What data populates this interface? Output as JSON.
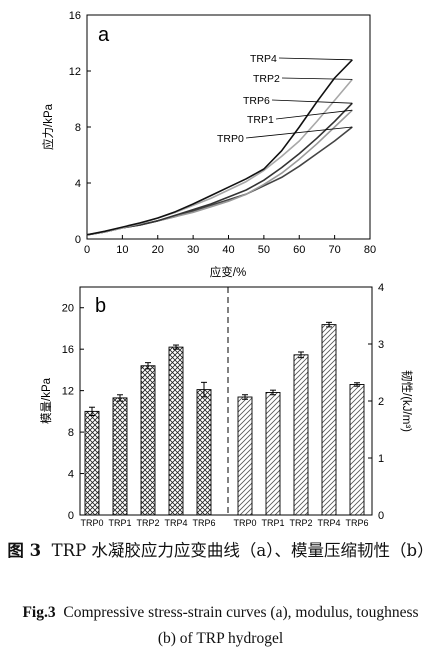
{
  "chart_data": [
    {
      "type": "line",
      "panel_label": "a",
      "xlabel": "应变/%",
      "ylabel": "应力/kPa",
      "xlim": [
        0,
        80
      ],
      "ylim": [
        0,
        16
      ],
      "xticks": [
        "0",
        "10",
        "20",
        "30",
        "40",
        "50",
        "60",
        "70",
        "80"
      ],
      "yticks": [
        "0",
        "4",
        "8",
        "12",
        "16"
      ],
      "legend_placement": "inline-right",
      "series": [
        {
          "name": "TRP0",
          "color": "#444444",
          "x": [
            0,
            5,
            10,
            15,
            20,
            25,
            30,
            35,
            40,
            45,
            50,
            55,
            60,
            65,
            70,
            75
          ],
          "y": [
            0.3,
            0.5,
            0.8,
            1.0,
            1.3,
            1.6,
            2.0,
            2.4,
            2.8,
            3.2,
            3.8,
            4.4,
            5.2,
            6.1,
            7.0,
            8.0
          ]
        },
        {
          "name": "TRP1",
          "color": "#9a9a9a",
          "x": [
            0,
            5,
            10,
            15,
            20,
            25,
            30,
            35,
            40,
            45,
            50,
            55,
            60,
            65,
            70,
            75
          ],
          "y": [
            0.3,
            0.5,
            0.8,
            1.0,
            1.3,
            1.6,
            1.9,
            2.3,
            2.7,
            3.2,
            3.9,
            4.7,
            5.7,
            6.8,
            8.0,
            9.2
          ]
        },
        {
          "name": "TRP6",
          "color": "#333333",
          "x": [
            0,
            5,
            10,
            15,
            20,
            25,
            30,
            35,
            40,
            45,
            50,
            55,
            60,
            65,
            70,
            75
          ],
          "y": [
            0.3,
            0.5,
            0.8,
            1.0,
            1.3,
            1.7,
            2.1,
            2.5,
            3.0,
            3.5,
            4.2,
            5.1,
            6.1,
            7.2,
            8.4,
            9.7
          ]
        },
        {
          "name": "TRP2",
          "color": "#a8a8a8",
          "x": [
            0,
            5,
            10,
            15,
            20,
            25,
            30,
            35,
            40,
            45,
            50,
            55,
            60,
            65,
            70,
            75
          ],
          "y": [
            0.3,
            0.5,
            0.8,
            1.1,
            1.5,
            1.9,
            2.4,
            2.9,
            3.5,
            4.1,
            4.9,
            5.9,
            7.0,
            8.4,
            9.9,
            11.4
          ]
        },
        {
          "name": "TRP4",
          "color": "#111111",
          "x": [
            0,
            5,
            10,
            15,
            20,
            25,
            30,
            35,
            40,
            45,
            50,
            55,
            60,
            65,
            70,
            75
          ],
          "y": [
            0.3,
            0.55,
            0.85,
            1.15,
            1.5,
            1.95,
            2.5,
            3.1,
            3.7,
            4.3,
            5.0,
            6.3,
            8.0,
            9.8,
            11.5,
            12.8
          ]
        }
      ]
    },
    {
      "type": "bar",
      "panel_label": "b",
      "categories": [
        "TRP0",
        "TRP1",
        "TRP2",
        "TRP4",
        "TRP6"
      ],
      "left": {
        "ylabel": "模量/kPa",
        "ylim": [
          0,
          22
        ],
        "yticks": [
          "0",
          "4",
          "8",
          "12",
          "16",
          "20"
        ],
        "values": [
          10.0,
          11.3,
          14.4,
          16.2,
          12.1
        ],
        "errors": [
          0.4,
          0.3,
          0.3,
          0.2,
          0.7
        ],
        "pattern": "crosshatch"
      },
      "right": {
        "ylabel": "韧性/(kJ/m³)",
        "ylim": [
          0,
          4
        ],
        "yticks": [
          "0",
          "1",
          "2",
          "3",
          "4"
        ],
        "values": [
          2.07,
          2.15,
          2.81,
          3.34,
          2.29
        ],
        "errors": [
          0.04,
          0.04,
          0.05,
          0.04,
          0.03
        ],
        "pattern": "diagonal"
      }
    }
  ],
  "caption": {
    "zh_label": "图 3",
    "zh_text": "TRP 水凝胶应力应变曲线（a）、模量压缩韧性（b）",
    "en_label": "Fig.3",
    "en_text": "Compressive stress-strain curves (a), modulus, toughness (b) of TRP hydrogel"
  }
}
